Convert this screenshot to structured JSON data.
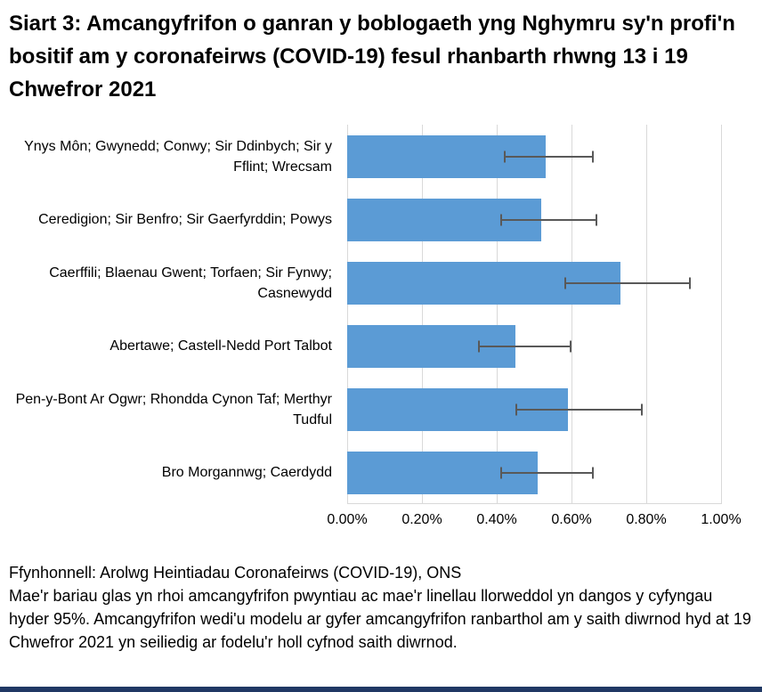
{
  "chart_data": {
    "type": "bar",
    "orientation": "horizontal",
    "title": "Siart 3: Amcangyfrifon o ganran y boblogaeth yng Nghymru sy'n profi'n bositif am y coronafeirws (COVID-19) fesul rhanbarth rhwng 13 i 19 Chwefror 2021",
    "categories": [
      "Ynys Môn; Gwynedd; Conwy; Sir Ddinbych; Sir y Fflint; Wrecsam",
      "Ceredigion; Sir Benfro; Sir Gaerfyrddin; Powys",
      "Caerffili; Blaenau Gwent; Torfaen; Sir Fynwy; Casnewydd",
      "Abertawe; Castell-Nedd Port Talbot",
      "Pen-y-Bont Ar Ogwr; Rhondda Cynon Taf; Merthyr Tudful",
      "Bro Morgannwg; Caerdydd"
    ],
    "values": [
      0.53,
      0.52,
      0.73,
      0.45,
      0.59,
      0.51
    ],
    "ci_low": [
      0.42,
      0.41,
      0.58,
      0.35,
      0.45,
      0.41
    ],
    "ci_high": [
      0.66,
      0.67,
      0.92,
      0.6,
      0.79,
      0.66
    ],
    "value_unit": "%",
    "xlim": [
      0,
      1.0
    ],
    "ticks": [
      0,
      0.2,
      0.4,
      0.6,
      0.8,
      1.0
    ],
    "tick_labels": [
      "0.00%",
      "0.20%",
      "0.40%",
      "0.60%",
      "0.80%",
      "1.00%"
    ],
    "grid": true,
    "legend": "none",
    "bar_color": "#5b9bd5",
    "error_color": "#595959",
    "gridline_color": "#d9d9d9"
  },
  "footer": {
    "source": "Ffynhonnell: Arolwg Heintiadau Coronafeirws (COVID-19), ONS",
    "note": "Mae'r bariau glas yn rhoi amcangyfrifon pwyntiau ac mae'r linellau llorweddol yn dangos y cyfyngau hyder 95%. Amcangyfrifon wedi'u modelu ar gyfer amcangyfrifon ranbarthol am y saith diwrnod hyd at 19 Chwefror 2021 yn seiliedig ar fodelu'r holl cyfnod saith diwrnod."
  },
  "accent_rule_color": "#203864"
}
